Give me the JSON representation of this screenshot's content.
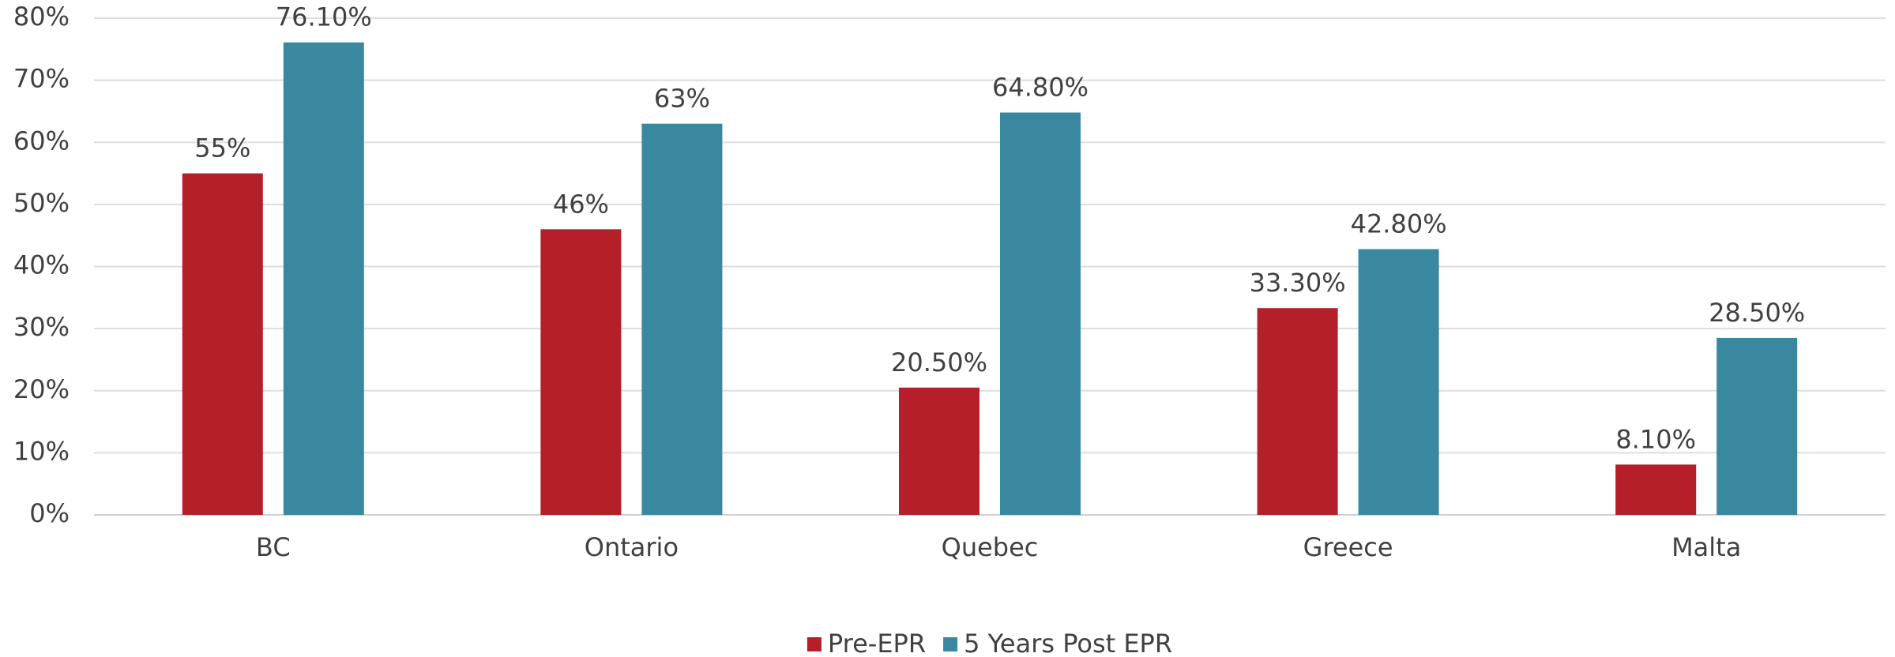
{
  "chart_data": {
    "type": "bar",
    "categories": [
      "BC",
      "Ontario",
      "Quebec",
      "Greece",
      "Malta"
    ],
    "series": [
      {
        "name": "Pre-EPR",
        "color": "#b51f29",
        "values": [
          55,
          46,
          20.5,
          33.3,
          8.1
        ],
        "value_labels": [
          "55%",
          "46%",
          "20.50%",
          "33.30%",
          "8.10%"
        ]
      },
      {
        "name": "5 Years Post EPR",
        "color": "#3a87a0",
        "values": [
          76.1,
          63,
          64.8,
          42.8,
          28.5
        ],
        "value_labels": [
          "76.10%",
          "63%",
          "64.80%",
          "42.80%",
          "28.50%"
        ]
      }
    ],
    "ylim": [
      0,
      80
    ],
    "yticks": [
      {
        "value": 0,
        "label": "0%"
      },
      {
        "value": 10,
        "label": "10%"
      },
      {
        "value": 20,
        "label": "20%"
      },
      {
        "value": 30,
        "label": "30%"
      },
      {
        "value": 40,
        "label": "40%"
      },
      {
        "value": 50,
        "label": "50%"
      },
      {
        "value": 60,
        "label": "60%"
      },
      {
        "value": 70,
        "label": "70%"
      },
      {
        "value": 80,
        "label": "80%"
      }
    ],
    "grid": true,
    "legend": "bottom"
  }
}
